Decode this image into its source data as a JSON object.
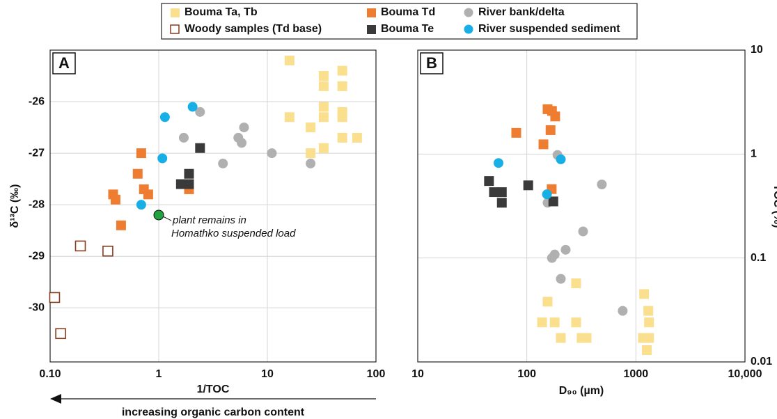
{
  "chart_data": [
    {
      "type": "scatter",
      "panel": "A",
      "x_label": "1/TOC",
      "y_label": "δ¹³C (‰)",
      "x_log": true,
      "y_log": false,
      "grid": true,
      "xlim": [
        0.1,
        100
      ],
      "ylim": [
        -31.05,
        -25
      ],
      "yaxis_side": "left",
      "xticks": [
        {
          "value": 0.1,
          "label": "0.10"
        },
        1,
        10,
        100
      ],
      "yticks": [
        -26,
        -27,
        -28,
        -29,
        -30
      ],
      "arrow_label": "increasing organic carbon content",
      "highlight": {
        "x": 1.0,
        "y": -28.2,
        "color": "#23a33f",
        "label": [
          "plant remains in",
          "Homathko suspended load"
        ]
      },
      "series": [
        {
          "name": "Bouma Ta, Tb",
          "color": "#fadf8e",
          "marker": "square",
          "x": [
            16,
            33,
            33,
            49,
            49,
            16,
            25,
            33,
            33,
            49,
            49,
            25,
            33,
            49,
            67
          ],
          "values": [
            -25.2,
            -25.5,
            -25.7,
            -25.4,
            -25.7,
            -26.3,
            -26.5,
            -26.1,
            -26.3,
            -26.2,
            -26.3,
            -27.0,
            -26.9,
            -26.7,
            -26.7
          ]
        },
        {
          "name": "Bouma Td",
          "color": "#ee7d31",
          "marker": "square",
          "x": [
            0.69,
            0.64,
            0.73,
            0.8,
            0.38,
            0.4,
            0.45,
            1.9
          ],
          "values": [
            -27.0,
            -27.4,
            -27.7,
            -27.8,
            -27.8,
            -27.9,
            -28.4,
            -27.7
          ]
        },
        {
          "name": "River bank/delta",
          "color": "#b0b0b0",
          "marker": "circle",
          "x": [
            2.4,
            1.7,
            6.1,
            5.4,
            5.8,
            3.9,
            11,
            25
          ],
          "values": [
            -26.2,
            -26.7,
            -26.5,
            -26.7,
            -26.8,
            -27.2,
            -27.0,
            -27.2
          ]
        },
        {
          "name": "Woody samples (Td base)",
          "color": "#8b3a1a",
          "marker": "hollow",
          "x": [
            0.19,
            0.34,
            0.11,
            0.125
          ],
          "values": [
            -28.8,
            -28.9,
            -29.8,
            -30.5
          ]
        },
        {
          "name": "Bouma Te",
          "color": "#3a3a3a",
          "marker": "square",
          "x": [
            2.4,
            1.6,
            1.9,
            1.9
          ],
          "values": [
            -26.9,
            -27.6,
            -27.4,
            -27.6
          ]
        },
        {
          "name": "River suspended sediment",
          "color": "#18afe6",
          "marker": "circle",
          "x": [
            2.05,
            1.14,
            1.08,
            0.69
          ],
          "values": [
            -26.1,
            -26.3,
            -27.1,
            -28.0
          ]
        }
      ]
    },
    {
      "type": "scatter",
      "panel": "B",
      "x_label": "D₉₀ (µm)",
      "y_label": "TOC (%)",
      "x_log": true,
      "y_log": true,
      "grid": true,
      "xlim": [
        10,
        10000
      ],
      "ylim": [
        0.01,
        10
      ],
      "yaxis_side": "right",
      "xticks": [
        10,
        100,
        1000,
        {
          "value": 10000,
          "label": "10,000"
        }
      ],
      "yticks": [
        0.01,
        0.1,
        1,
        10
      ],
      "series": [
        {
          "color": "#fadf8e",
          "marker": "square",
          "x": [
            283,
            1190,
            155,
            1300,
            138,
            180,
            283,
            1320,
            205,
            318,
            353,
            1160,
            1320,
            1260
          ],
          "values": [
            0.057,
            0.045,
            0.038,
            0.031,
            0.024,
            0.024,
            0.024,
            0.024,
            0.017,
            0.017,
            0.017,
            0.017,
            0.017,
            0.013
          ]
        },
        {
          "color": "#ee7d31",
          "marker": "square",
          "x": [
            155,
            170,
            182,
            80,
            165,
            142,
            169
          ],
          "values": [
            2.7,
            2.6,
            2.3,
            1.6,
            1.7,
            1.24,
            0.46
          ]
        },
        {
          "color": "#b0b0b0",
          "marker": "circle",
          "x": [
            191,
            487,
            155,
            328,
            227,
            180,
            205,
            757,
            170
          ],
          "values": [
            0.98,
            0.51,
            0.34,
            0.18,
            0.12,
            0.108,
            0.063,
            0.031,
            0.1
          ]
        },
        {
          "color": "#3a3a3a",
          "marker": "square",
          "x": [
            45,
            50,
            59,
            59,
            103,
            175
          ],
          "values": [
            0.55,
            0.43,
            0.43,
            0.34,
            0.5,
            0.35
          ]
        },
        {
          "color": "#18afe6",
          "marker": "circle",
          "x": [
            55,
            205,
            153
          ],
          "values": [
            0.82,
            0.89,
            0.41
          ]
        }
      ]
    }
  ]
}
